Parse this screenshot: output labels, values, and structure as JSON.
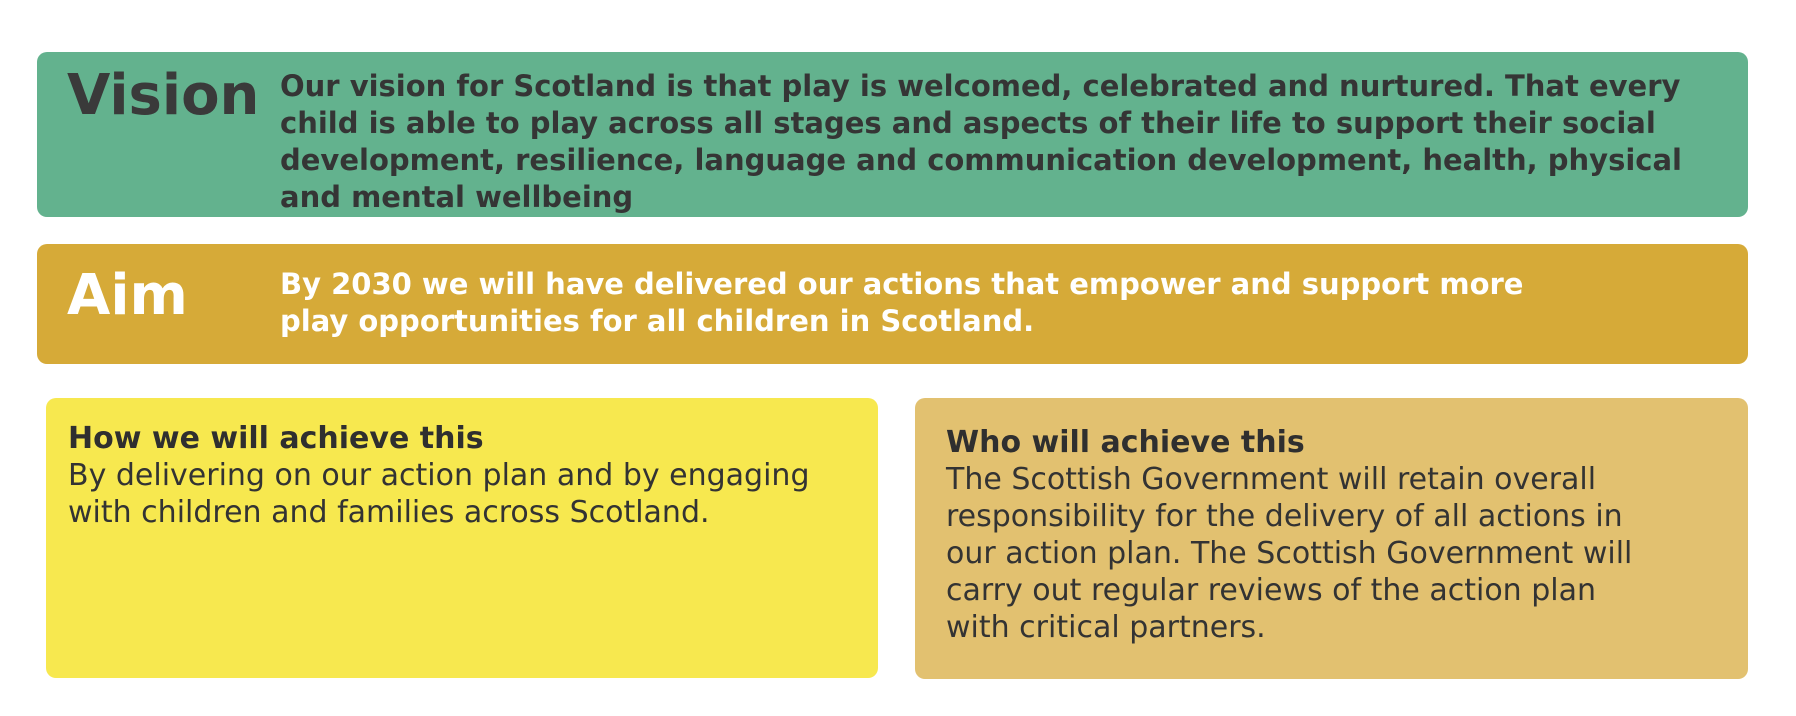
{
  "colors": {
    "vision_bg": "#63b28e",
    "aim_bg": "#d6aa38",
    "how_bg": "#f7e84f",
    "who_bg": "#e2c170",
    "dark_text": "#353535",
    "light_text": "#ffffff"
  },
  "vision": {
    "heading": "Vision",
    "text": "Our vision for Scotland is that play is welcomed, celebrated and nurtured. That every child is able to play across all stages and aspects of their life to support their social development, resilience, language and communication development, health, physical and mental wellbeing"
  },
  "aim": {
    "heading": "Aim",
    "text": "By 2030 we will have delivered our actions that empower and support more play opportunities for all children in Scotland."
  },
  "how": {
    "heading": "How we will achieve this",
    "text": "By delivering on our action plan and by engaging with children and families across Scotland."
  },
  "who": {
    "heading": "Who will achieve this",
    "text": "The Scottish Government will retain overall responsibility for the delivery of all actions in our action plan. The Scottish Government will carry out regular reviews of the action plan with critical partners."
  }
}
